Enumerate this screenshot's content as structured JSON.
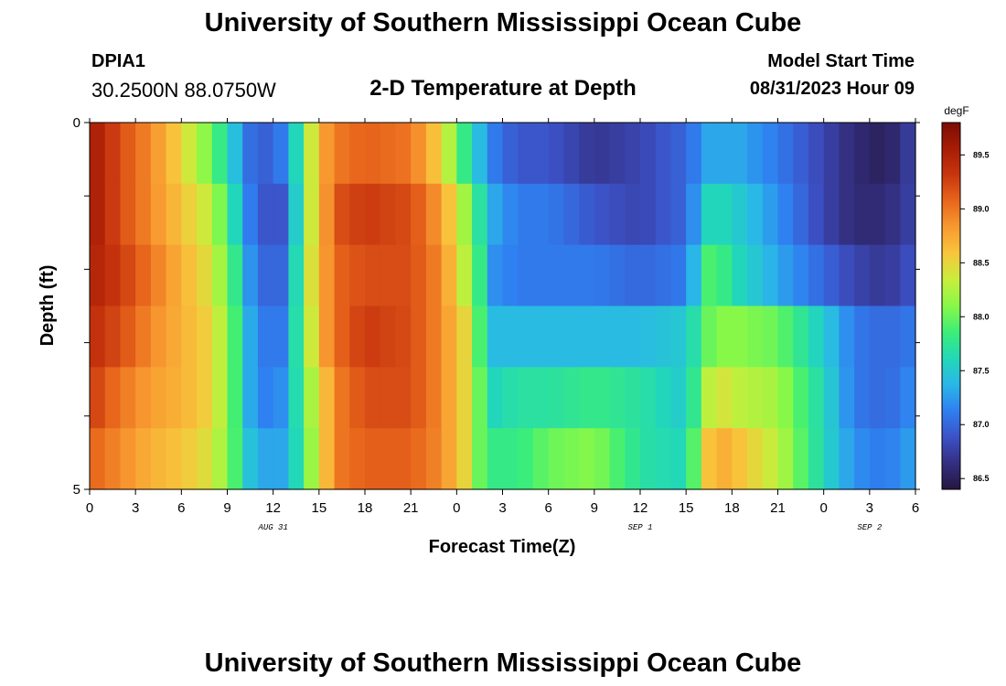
{
  "header": {
    "title_top": "University of Southern Mississippi Ocean Cube",
    "title_bottom": "University of Southern Mississippi Ocean Cube",
    "station_id": "DPIA1",
    "coords": "30.2500N  88.0750W",
    "chart_title": "2-D Temperature at Depth",
    "start_label": "Model Start Time",
    "start_value": "08/31/2023 Hour 09"
  },
  "chart_data": {
    "type": "heatmap",
    "title": "2-D Temperature at Depth",
    "xlabel": "Forecast Time(Z)",
    "ylabel": "Depth (ft)",
    "x_tick_labels": [
      "0",
      "3",
      "6",
      "9",
      "12",
      "15",
      "18",
      "21",
      "0",
      "3",
      "6",
      "9",
      "12",
      "15",
      "18",
      "21",
      "0",
      "3",
      "6"
    ],
    "x_range_hours": [
      0,
      54
    ],
    "date_labels": [
      {
        "text": "AUG 31",
        "hour": 12
      },
      {
        "text": "SEP 1",
        "hour": 36
      },
      {
        "text": "SEP 2",
        "hour": 51
      }
    ],
    "y_tick_labels": [
      "0",
      "5"
    ],
    "ylim": [
      0,
      5
    ],
    "depth_rows_ft": [
      0,
      1,
      2,
      3,
      4,
      5
    ],
    "colorbar": {
      "unit": "degF",
      "min": 86.4,
      "max": 89.8,
      "tick_labels": [
        "86.5",
        "87.0",
        "87.5",
        "88.0",
        "88.5",
        "89.0",
        "89.5"
      ],
      "colors": [
        "#241640",
        "#342f80",
        "#3c52c8",
        "#2f7ff0",
        "#2ab7e8",
        "#22d8b8",
        "#3cee78",
        "#88f848",
        "#c8ee3c",
        "#f8c63c",
        "#f89a30",
        "#e8661c",
        "#c8360e",
        "#a81c06",
        "#7c0c04"
      ]
    },
    "hour_stops": [
      0,
      2,
      4,
      6,
      8,
      9.3,
      10.3,
      11,
      12.5,
      13.3,
      14,
      15.3,
      16.5,
      18,
      21,
      23,
      24.5,
      25.5,
      26.5,
      28,
      30,
      33,
      36,
      39,
      40.5,
      41.5,
      42.5,
      45,
      48,
      50,
      52,
      54
    ],
    "series": [
      {
        "name": "0 ft",
        "values": [
          89.6,
          89.2,
          88.9,
          88.5,
          88.0,
          87.5,
          87.1,
          86.9,
          87.1,
          87.4,
          88.1,
          88.8,
          89.0,
          89.1,
          89.0,
          88.5,
          87.8,
          87.4,
          87.1,
          86.9,
          86.9,
          86.7,
          86.8,
          87.0,
          87.3,
          87.3,
          87.3,
          87.1,
          86.8,
          86.6,
          86.5,
          86.8
        ]
      },
      {
        "name": "1 ft",
        "values": [
          89.6,
          89.2,
          88.9,
          88.6,
          88.3,
          87.7,
          87.2,
          86.9,
          86.9,
          87.3,
          88.1,
          88.8,
          89.2,
          89.3,
          89.2,
          88.8,
          88.2,
          87.7,
          87.3,
          87.1,
          87.1,
          86.9,
          86.8,
          87.0,
          87.6,
          87.6,
          87.5,
          87.2,
          86.8,
          86.6,
          86.6,
          86.8
        ]
      },
      {
        "name": "2 ft",
        "values": [
          89.5,
          89.3,
          89.0,
          88.7,
          88.4,
          87.9,
          87.3,
          87.0,
          87.0,
          87.4,
          88.2,
          88.8,
          89.1,
          89.2,
          89.2,
          88.9,
          88.3,
          87.8,
          87.2,
          87.1,
          87.1,
          87.1,
          87.0,
          87.1,
          87.9,
          87.8,
          87.6,
          87.3,
          87.0,
          86.8,
          86.7,
          86.9
        ]
      },
      {
        "name": "3 ft",
        "values": [
          89.4,
          89.2,
          88.9,
          88.7,
          88.5,
          88.0,
          87.4,
          87.1,
          87.1,
          87.5,
          88.1,
          88.8,
          89.1,
          89.3,
          89.2,
          88.9,
          88.5,
          87.9,
          87.4,
          87.4,
          87.4,
          87.4,
          87.4,
          87.5,
          88.0,
          88.1,
          88.1,
          88.0,
          87.5,
          87.1,
          87.0,
          87.1
        ]
      },
      {
        "name": "4 ft",
        "values": [
          89.3,
          89.0,
          88.8,
          88.7,
          88.5,
          88.0,
          87.4,
          87.1,
          87.2,
          87.5,
          88.0,
          88.6,
          89.0,
          89.2,
          89.2,
          88.9,
          88.5,
          88.0,
          87.6,
          87.7,
          87.7,
          87.8,
          87.7,
          87.5,
          88.3,
          88.4,
          88.3,
          88.2,
          87.6,
          87.1,
          87.0,
          87.2
        ]
      },
      {
        "name": "5 ft",
        "values": [
          89.1,
          88.9,
          88.7,
          88.6,
          88.4,
          88.0,
          87.5,
          87.3,
          87.3,
          87.5,
          87.9,
          88.6,
          89.0,
          89.1,
          89.1,
          88.9,
          88.5,
          88.0,
          87.8,
          87.8,
          88.0,
          88.1,
          87.7,
          87.6,
          88.6,
          88.7,
          88.6,
          88.3,
          87.6,
          87.2,
          87.1,
          87.3
        ]
      }
    ]
  }
}
